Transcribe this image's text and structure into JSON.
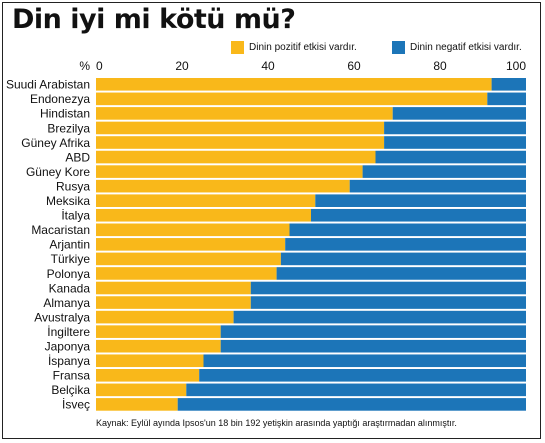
{
  "title": "Din iyi mi kötü mü?",
  "source": "Kaynak: Eylül ayında Ipsos'un 18 bin 192 yetişkin arasında yaptığı araştırmadan alınmıştır.",
  "colors": {
    "positive": "#F9B81A",
    "negative": "#1C75B8"
  },
  "chart_data": {
    "type": "bar",
    "orientation": "horizontal",
    "stacked": true,
    "unit_label": "%",
    "xlim": [
      0,
      100
    ],
    "ticks": [
      0,
      20,
      40,
      60,
      80,
      100
    ],
    "legend_position": "top-right",
    "categories": [
      "Suudi Arabistan",
      "Endonezya",
      "Hindistan",
      "Brezilya",
      "Güney Afrika",
      "ABD",
      "Güney Kore",
      "Rusya",
      "Meksika",
      "İtalya",
      "Macaristan",
      "Arjantin",
      "Türkiye",
      "Polonya",
      "Kanada",
      "Almanya",
      "Avustralya",
      "İngiltere",
      "Japonya",
      "İspanya",
      "Fransa",
      "Belçika",
      "İsveç"
    ],
    "series": [
      {
        "name": "Dinin pozitif etkisi vardır.",
        "values": [
          92,
          91,
          69,
          67,
          67,
          65,
          62,
          59,
          51,
          50,
          45,
          44,
          43,
          42,
          36,
          36,
          32,
          29,
          29,
          25,
          24,
          21,
          19
        ]
      },
      {
        "name": "Dinin negatif etkisi vardır.",
        "values": [
          8,
          9,
          31,
          33,
          33,
          35,
          38,
          41,
          49,
          50,
          55,
          56,
          57,
          58,
          64,
          64,
          68,
          71,
          71,
          75,
          76,
          79,
          81
        ]
      }
    ]
  }
}
